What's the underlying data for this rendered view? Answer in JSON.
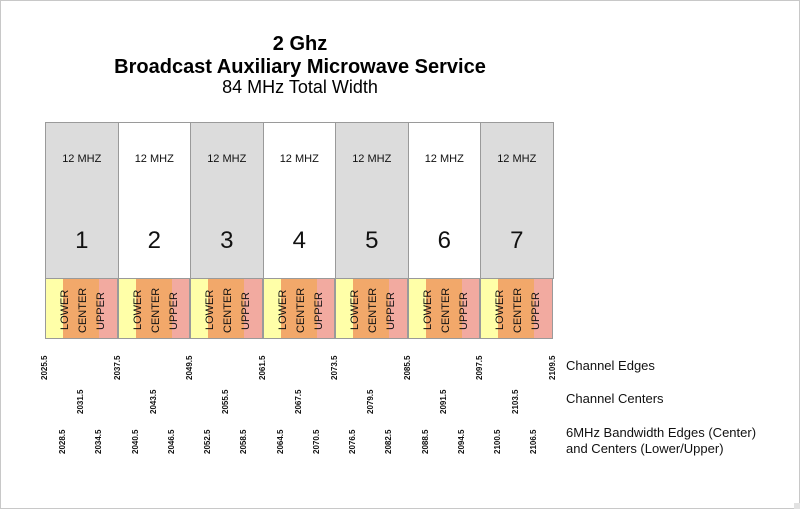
{
  "title": {
    "line1": "2 Ghz",
    "line2": "Broadcast Auxiliary Microwave Service",
    "line3": "84 MHz Total Width"
  },
  "channels": [
    {
      "number": "1",
      "width": "12 MHZ"
    },
    {
      "number": "2",
      "width": "12 MHZ"
    },
    {
      "number": "3",
      "width": "12 MHZ"
    },
    {
      "number": "4",
      "width": "12 MHZ"
    },
    {
      "number": "5",
      "width": "12 MHZ"
    },
    {
      "number": "6",
      "width": "12 MHZ"
    },
    {
      "number": "7",
      "width": "12 MHZ"
    }
  ],
  "subband_labels": {
    "lower": "LOWER",
    "center": "CENTER",
    "upper": "UPPER"
  },
  "channel_edges": [
    "2025.5",
    "2037.5",
    "2049.5",
    "2061.5",
    "2073.5",
    "2085.5",
    "2097.5",
    "2109.5"
  ],
  "channel_centers": [
    "2031.5",
    "2043.5",
    "2055.5",
    "2067.5",
    "2079.5",
    "2091.5",
    "2103.5"
  ],
  "bandwidth_edges": [
    "2028.5",
    "2034.5",
    "2040.5",
    "2046.5",
    "2052.5",
    "2058.5",
    "2064.5",
    "2070.5",
    "2076.5",
    "2082.5",
    "2088.5",
    "2094.5",
    "2100.5",
    "2106.5"
  ],
  "legend": {
    "channel_edges": "Channel Edges",
    "channel_centers": "Channel Centers",
    "bandwidth_line1": "6MHz Bandwidth Edges (Center)",
    "bandwidth_line2": "and Centers (Lower/Upper)"
  },
  "colors": {
    "gray_channel": "#dcdcdc",
    "lower": "#ffffa8",
    "center": "#f2a86a",
    "upper": "#f2aaa0"
  }
}
